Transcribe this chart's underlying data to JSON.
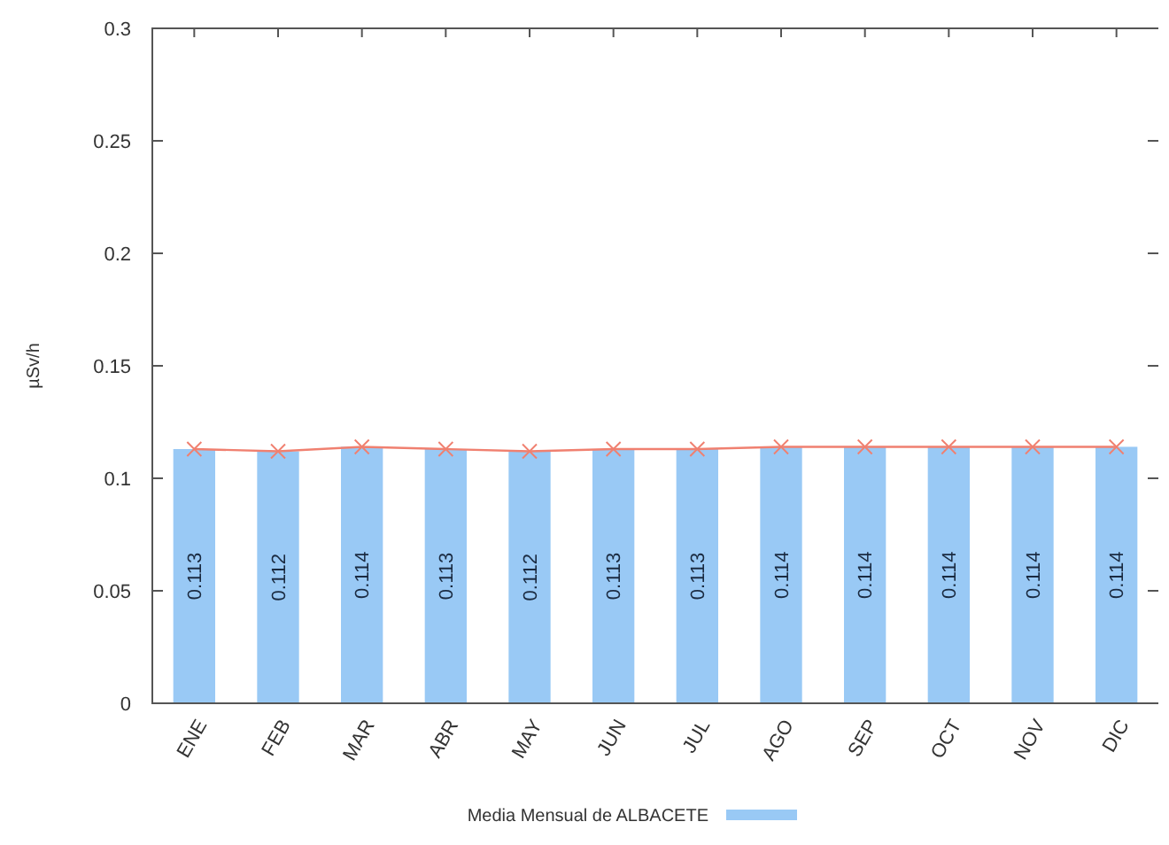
{
  "chart_data": {
    "type": "bar",
    "ylabel": "µSv/h",
    "categories": [
      "ENE",
      "FEB",
      "MAR",
      "ABR",
      "MAY",
      "JUN",
      "JUL",
      "AGO",
      "SEP",
      "OCT",
      "NOV",
      "DIC"
    ],
    "series": [
      {
        "name": "Media Mensual de ALBACETE",
        "color": "#99c9f5",
        "values": [
          0.113,
          0.112,
          0.114,
          0.113,
          0.112,
          0.113,
          0.113,
          0.114,
          0.114,
          0.114,
          0.114,
          0.114
        ],
        "value_labels": [
          "0.113",
          "0.112",
          "0.114",
          "0.113",
          "0.112",
          "0.113",
          "0.113",
          "0.114",
          "0.114",
          "0.114",
          "0.114",
          "0.114"
        ]
      },
      {
        "type": "line",
        "color": "#f08070",
        "values": [
          0.113,
          0.112,
          0.114,
          0.113,
          0.112,
          0.113,
          0.113,
          0.114,
          0.114,
          0.114,
          0.114,
          0.114
        ]
      }
    ],
    "ylim": [
      0,
      0.3
    ],
    "yticks": [
      0,
      0.05,
      0.1,
      0.15,
      0.2,
      0.25,
      0.3
    ],
    "grid": false,
    "legend": "bottom",
    "marker": "cross"
  }
}
